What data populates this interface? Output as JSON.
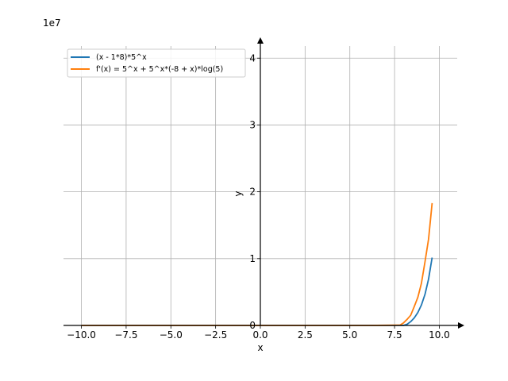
{
  "chart_data": {
    "type": "line",
    "xlabel": "x",
    "ylabel": "y",
    "scale_label": "1e7",
    "xlim": [
      -11,
      11
    ],
    "ylim": [
      0,
      4.3
    ],
    "y_unit_multiplier": 10000000,
    "x_ticks": [
      -10.0,
      -7.5,
      -5.0,
      -2.5,
      0.0,
      2.5,
      5.0,
      7.5,
      10.0
    ],
    "x_tick_labels": [
      "−10.0",
      "−7.5",
      "−5.0",
      "−2.5",
      "0.0",
      "2.5",
      "5.0",
      "7.5",
      "10.0"
    ],
    "y_ticks": [
      0,
      1,
      2,
      3,
      4
    ],
    "y_tick_labels": [
      "0",
      "1",
      "2",
      "3",
      "4"
    ],
    "grid": true,
    "legend_position": "top-left",
    "series": [
      {
        "name": "(x - 1*8)*5^x",
        "color": "#1f77b4",
        "x": [
          -10,
          -8,
          -6,
          -4,
          -2,
          0,
          2,
          4,
          6,
          7,
          7.5,
          8,
          8.2,
          8.4,
          8.6,
          8.8,
          9,
          9.2,
          9.4,
          9.6
        ],
        "y": [
          0,
          0,
          0,
          0,
          0,
          0,
          0,
          0,
          0,
          0,
          0,
          0,
          0.018,
          0.057,
          0.113,
          0.192,
          0.305,
          0.465,
          0.692,
          1.016
        ]
      },
      {
        "name": "f'(x) = 5^x + 5^x*(-8 + x)*log(5)",
        "color": "#ff7f0e",
        "x": [
          -10,
          -8,
          -6,
          -4,
          -2,
          0,
          2,
          4,
          6,
          7,
          7.5,
          7.8,
          8,
          8.2,
          8.4,
          8.6,
          8.8,
          9,
          9.2,
          9.4,
          9.6
        ],
        "y": [
          0,
          0,
          0,
          0,
          0,
          0,
          0,
          0,
          0,
          0.002,
          0.004,
          0.005,
          0.039,
          0.091,
          0.152,
          0.283,
          0.421,
          0.63,
          0.95,
          1.29,
          1.83
        ]
      }
    ]
  }
}
